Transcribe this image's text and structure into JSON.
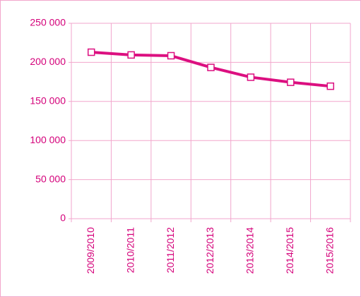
{
  "chart_data": {
    "type": "line",
    "categories": [
      "2009/2010",
      "2010/2011",
      "2011/2012",
      "2012/2013",
      "2013/2014",
      "2014/2015",
      "2015/2016"
    ],
    "values": [
      213000,
      209500,
      208500,
      193500,
      181000,
      174500,
      169500
    ],
    "color": "#dc0f80",
    "ylim": [
      0,
      250000
    ],
    "yticks": [
      0,
      {
        "value": 50000,
        "label": "50 000"
      },
      {
        "value": 100000,
        "label": "100 000"
      },
      {
        "value": 150000,
        "label": "150 000"
      },
      {
        "value": 200000,
        "label": "200 000"
      },
      {
        "value": 250000,
        "label": "250 000"
      }
    ],
    "grid": true
  }
}
